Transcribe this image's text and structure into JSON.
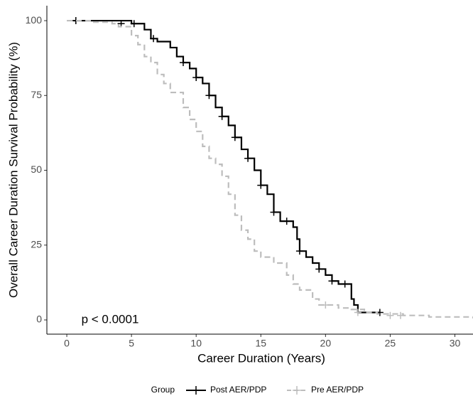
{
  "chart_data": {
    "type": "step",
    "x_label": "Career Duration (Years)",
    "y_label": "Overall Career Duration Survival Probability (%)",
    "annotation": "p < 0.0001",
    "legend_title": "Group",
    "legend_position": "bottom",
    "xlim": [
      -1.54,
      31.4
    ],
    "ylim": [
      -4.75,
      105
    ],
    "xticks": [
      0,
      5,
      10,
      15,
      20,
      25,
      30
    ],
    "yticks": [
      0,
      25,
      50,
      75,
      100
    ],
    "series": [
      {
        "name": "Post AER/PDP",
        "color": "#000000",
        "dashed": false,
        "x": [
          0.5,
          5,
          6,
          6.5,
          7,
          8,
          8.5,
          9,
          9.5,
          10,
          10.5,
          11,
          11.5,
          12,
          12.5,
          13,
          13.5,
          14,
          14.5,
          15,
          15.5,
          16,
          16.5,
          17.5,
          17.8,
          18,
          18.5,
          19,
          19.5,
          20,
          20.5,
          21,
          22,
          22.2,
          22.5,
          24.2
        ],
        "values": [
          100,
          99,
          97,
          94,
          93,
          91,
          88,
          86,
          84,
          81,
          79,
          75,
          71,
          68,
          65,
          61,
          57,
          54,
          50,
          45,
          42,
          36,
          33,
          31,
          27,
          23,
          21,
          19,
          17,
          15,
          13,
          12,
          7,
          5,
          2.5,
          2.5
        ],
        "censor_x": [
          0.7,
          4.2,
          5.2,
          6.7,
          9,
          10,
          11,
          12,
          13,
          14,
          15,
          16,
          17,
          18,
          19.5,
          20.5,
          21.5,
          24.2
        ],
        "censor_values": [
          100,
          99,
          99,
          94,
          86,
          81,
          75,
          68,
          61,
          54,
          45,
          36,
          33,
          23,
          17,
          13,
          12,
          2.5
        ]
      },
      {
        "name": "Pre AER/PDP",
        "color": "#bdbdbd",
        "dashed": true,
        "x": [
          0,
          2,
          3.5,
          4,
          5,
          5.5,
          6,
          6.5,
          7,
          7.5,
          8,
          9,
          9.5,
          10,
          10.5,
          11,
          11.5,
          12,
          12.5,
          13,
          13.5,
          14,
          14.5,
          15,
          16,
          17,
          17.5,
          18,
          19,
          19.5,
          20,
          21,
          22,
          23,
          24,
          26,
          28,
          31.4
        ],
        "values": [
          100,
          99.5,
          99,
          98,
          95,
          92,
          88,
          86,
          82,
          79,
          76,
          71,
          67,
          63,
          58,
          54,
          52,
          48,
          42,
          35,
          30,
          27,
          23,
          21,
          19,
          15,
          12,
          10,
          7,
          5,
          5,
          4,
          3.5,
          2.5,
          2,
          1.5,
          1,
          0.5
        ],
        "censor_x": [
          20,
          22.5,
          25,
          25.8
        ],
        "censor_values": [
          5,
          2.5,
          1.5,
          1.5
        ]
      }
    ]
  }
}
